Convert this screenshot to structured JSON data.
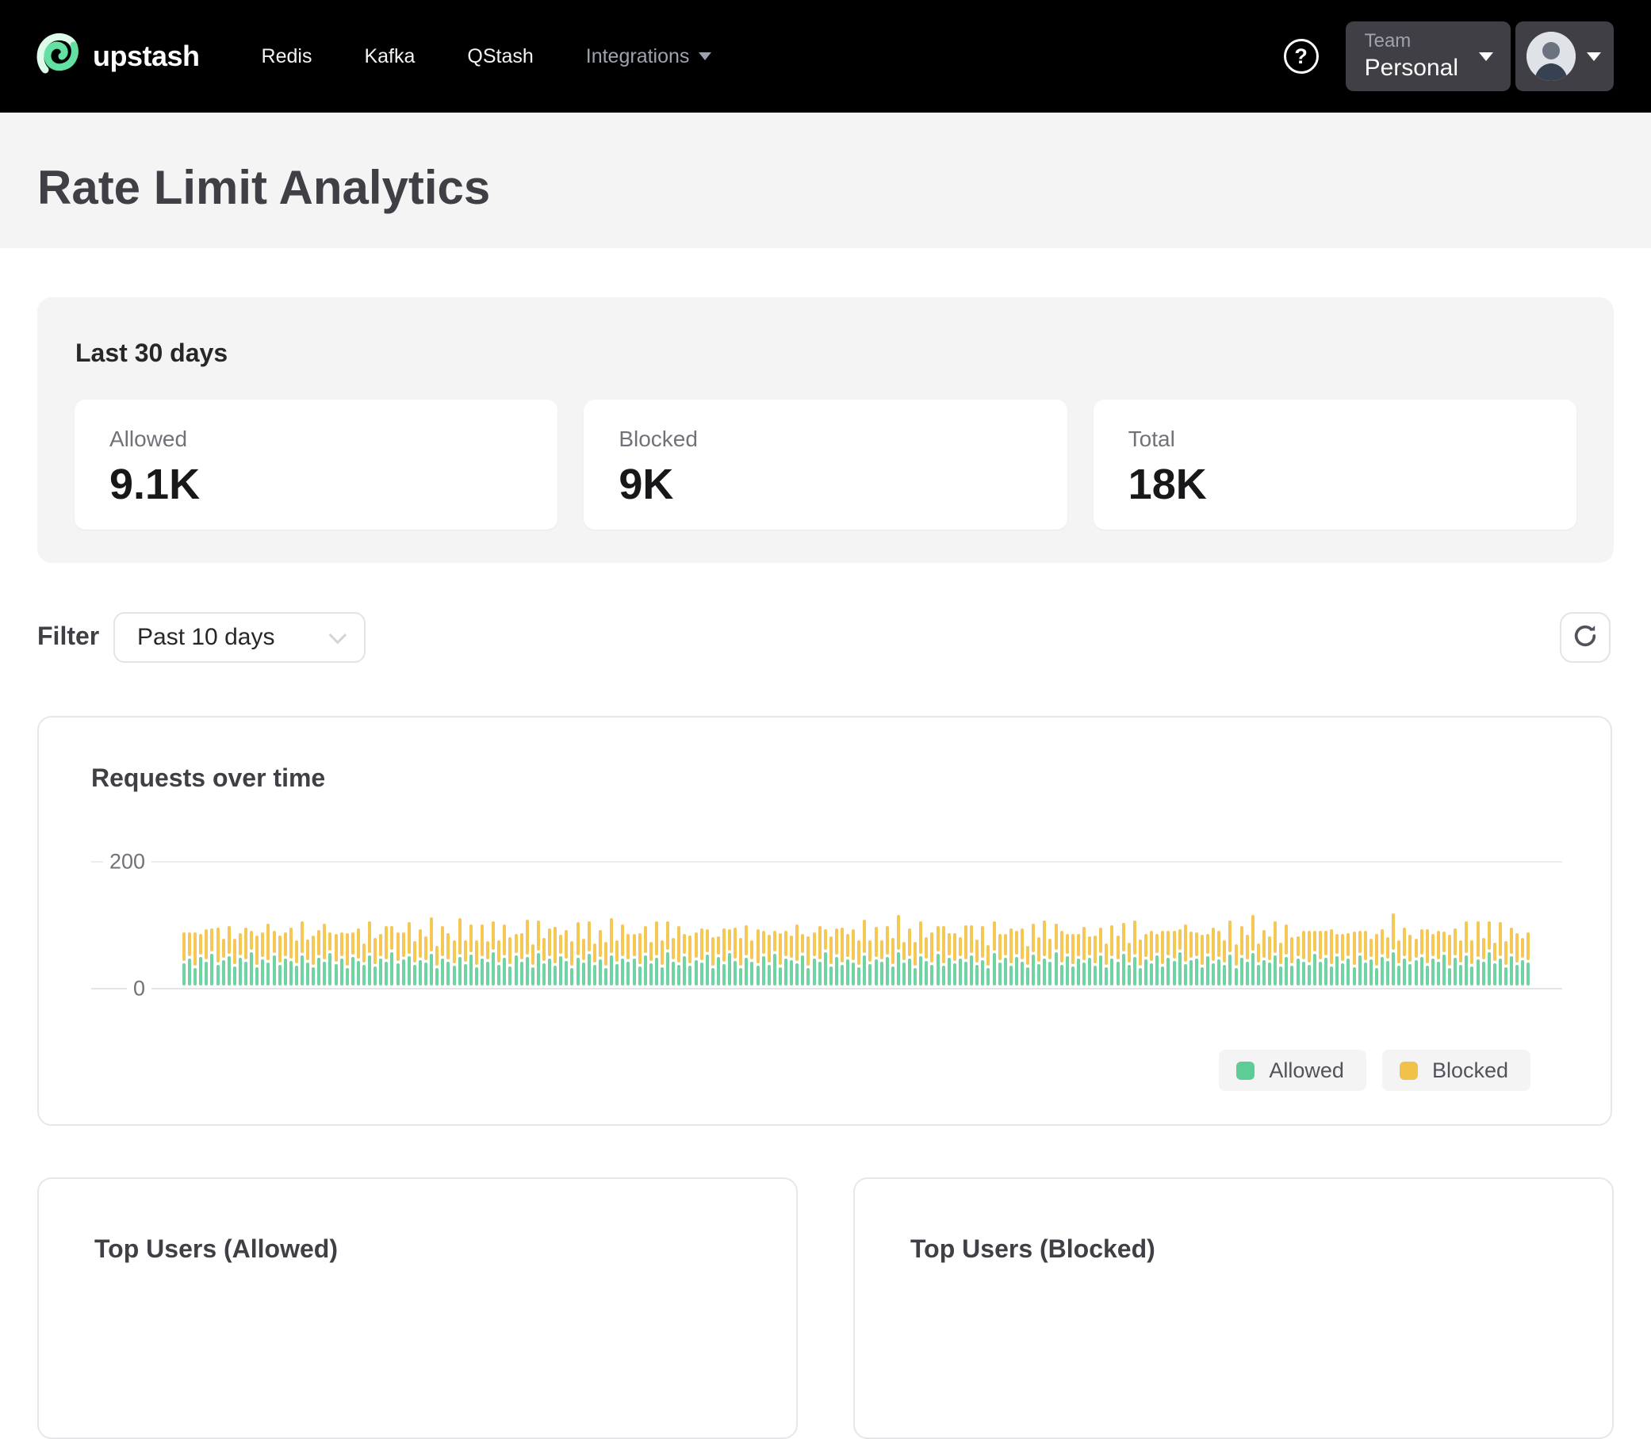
{
  "nav": {
    "brand": "upstash",
    "links": [
      {
        "label": "Redis"
      },
      {
        "label": "Kafka"
      },
      {
        "label": "QStash"
      }
    ],
    "integrations_label": "Integrations",
    "help_glyph": "?",
    "team": {
      "label": "Team",
      "value": "Personal"
    }
  },
  "header": {
    "title": "Rate Limit Analytics"
  },
  "summary": {
    "title": "Last 30 days",
    "stats": [
      {
        "label": "Allowed",
        "value": "9.1K"
      },
      {
        "label": "Blocked",
        "value": "9K"
      },
      {
        "label": "Total",
        "value": "18K"
      }
    ]
  },
  "filter": {
    "label": "Filter",
    "selected": "Past 10 days"
  },
  "chart_card": {
    "title": "Requests over time"
  },
  "chart_data": {
    "type": "bar",
    "variant": "stacked",
    "title": "Requests over time",
    "xlabel": "",
    "ylabel": "",
    "ylim": [
      0,
      200
    ],
    "yticks": [
      "200",
      "0"
    ],
    "grid": "horizontal",
    "legend_position": "bottom-right",
    "legend": [
      {
        "name": "Allowed",
        "color": "#5ecd95"
      },
      {
        "name": "Blocked",
        "color": "#f0c24a"
      }
    ],
    "bar_colors": {
      "allowed": "#6fd3a2",
      "blocked": "#f5c755"
    },
    "x_description": "time buckets across the past 10 days (no x tick labels shown)",
    "series": [
      {
        "name": "Allowed",
        "values": [
          35,
          42,
          28,
          45,
          38,
          50,
          33,
          40,
          46,
          30,
          44,
          37,
          52,
          29,
          41,
          36,
          48,
          32,
          43,
          39,
          31,
          47,
          36,
          29,
          44,
          38,
          51,
          34,
          42,
          27,
          45,
          39,
          33,
          48,
          30,
          43,
          37,
          53,
          35,
          41,
          46,
          32,
          40,
          36,
          50,
          28,
          43,
          38,
          31,
          45,
          34,
          49,
          29,
          42,
          37,
          52,
          33,
          44,
          30,
          47,
          38,
          45,
          29,
          51,
          35,
          42,
          31,
          46,
          39,
          27,
          44,
          36,
          50,
          32,
          41,
          28,
          47,
          34,
          43,
          37,
          42,
          30,
          48,
          35,
          44,
          29,
          52,
          38,
          33,
          46,
          31,
          40,
          36,
          49,
          27,
          45,
          34,
          51,
          39,
          28,
          44,
          37,
          31,
          46,
          33,
          50,
          29,
          43,
          40,
          35,
          47,
          28,
          42,
          38,
          53,
          30,
          45,
          32,
          41,
          36,
          29,
          48,
          34,
          41,
          37,
          45,
          30,
          52,
          36,
          43,
          28,
          46,
          39,
          33,
          50,
          31,
          44,
          35,
          42,
          38,
          47,
          33,
          40,
          28,
          51,
          36,
          44,
          31,
          45,
          38,
          29,
          49,
          34,
          42,
          37,
          53,
          32,
          46,
          30,
          43,
          36,
          44,
          31,
          47,
          29,
          42,
          38,
          50,
          33,
          45,
          27,
          41,
          35,
          48,
          30,
          44,
          39,
          52,
          34,
          40,
          43,
          29,
          46,
          35,
          41,
          32,
          49,
          28,
          44,
          37,
          51,
          33,
          40,
          36,
          47,
          30,
          45,
          31,
          42,
          38,
          33,
          50,
          38,
          44,
          30,
          46,
          35,
          42,
          29,
          48,
          36,
          41,
          27,
          45,
          39,
          52,
          31,
          43,
          34,
          40,
          45,
          31,
          42,
          37,
          49,
          28,
          44,
          33,
          47,
          30,
          41,
          38,
          53,
          35,
          43,
          29,
          46,
          32,
          40,
          36
        ]
      },
      {
        "name": "Blocked",
        "values": [
          45,
          38,
          52,
          33,
          47,
          36,
          55,
          30,
          44,
          40,
          35,
          50,
          31,
          46,
          39,
          58,
          34,
          43,
          37,
          48,
          36,
          51,
          33,
          46,
          40,
          56,
          29,
          44,
          38,
          52,
          35,
          47,
          30,
          49,
          41,
          34,
          53,
          37,
          45,
          39,
          50,
          34,
          45,
          38,
          54,
          31,
          47,
          41,
          36,
          57,
          33,
          44,
          39,
          51,
          29,
          46,
          35,
          48,
          42,
          30,
          41,
          55,
          32,
          48,
          36,
          44,
          58,
          30,
          45,
          39,
          52,
          34,
          47,
          31,
          43,
          37,
          56,
          33,
          49,
          40,
          35,
          49,
          42,
          30,
          53,
          38,
          46,
          33,
          57,
          31,
          44,
          40,
          50,
          36,
          45,
          29,
          52,
          34,
          48,
          43,
          47,
          31,
          54,
          37,
          43,
          33,
          50,
          40,
          35,
          58,
          30,
          46,
          38,
          52,
          32,
          44,
          41,
          55,
          36,
          49,
          39,
          52,
          34,
          48,
          31,
          45,
          41,
          56,
          29,
          43,
          37,
          51,
          33,
          47,
          40,
          59,
          35,
          44,
          30,
          53,
          44,
          36,
          50,
          32,
          46,
          42,
          34,
          55,
          38,
          48,
          30,
          45,
          39,
          57,
          33,
          41,
          51,
          31,
          47,
          35,
          53,
          30,
          44,
          40,
          34,
          49,
          37,
          45,
          31,
          54,
          42,
          36,
          48,
          29,
          52,
          38,
          43,
          33,
          58,
          41,
          37,
          47,
          31,
          53,
          42,
          35,
          50,
          33,
          46,
          39,
          57,
          30,
          44,
          38,
          51,
          34,
          48,
          41,
          32,
          45,
          49,
          33,
          45,
          39,
          55,
          31,
          43,
          37,
          52,
          35,
          47,
          29,
          51,
          40,
          34,
          58,
          36,
          44,
          42,
          30,
          40,
          54,
          36,
          46,
          32,
          48,
          42,
          34,
          50,
          38,
          56,
          33,
          45,
          29,
          53,
          37,
          41,
          47,
          31,
          44
        ]
      }
    ]
  },
  "bottom": {
    "cards": [
      {
        "title": "Top Users (Allowed)"
      },
      {
        "title": "Top Users (Blocked)"
      }
    ]
  }
}
